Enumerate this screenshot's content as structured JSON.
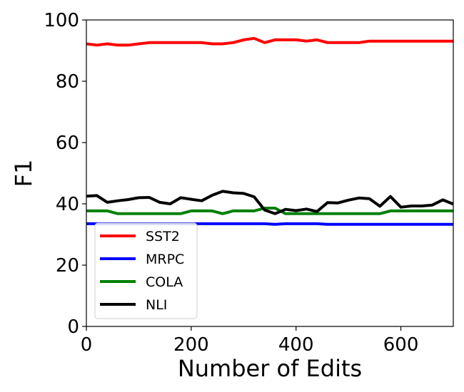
{
  "chart_data": {
    "type": "line",
    "title": "",
    "xlabel": "Number of Edits",
    "ylabel": "F1",
    "xlim": [
      0,
      700
    ],
    "ylim": [
      0,
      100
    ],
    "xticks": [
      0,
      200,
      400,
      600
    ],
    "yticks": [
      0,
      20,
      40,
      60,
      80,
      100
    ],
    "grid": false,
    "legend_position": "lower-left",
    "x": [
      0,
      20,
      40,
      60,
      80,
      100,
      120,
      140,
      160,
      180,
      200,
      220,
      240,
      260,
      280,
      300,
      320,
      340,
      360,
      380,
      400,
      420,
      440,
      460,
      480,
      500,
      520,
      540,
      560,
      580,
      600,
      620,
      640,
      660,
      680,
      700
    ],
    "series": [
      {
        "name": "SST2",
        "color": "#ff0000",
        "values": [
          92.2,
          91.8,
          92.2,
          91.8,
          91.8,
          92.2,
          92.6,
          92.6,
          92.6,
          92.6,
          92.6,
          92.6,
          92.2,
          92.2,
          92.6,
          93.5,
          94.0,
          92.6,
          93.5,
          93.5,
          93.5,
          93.1,
          93.5,
          92.6,
          92.6,
          92.6,
          92.6,
          93.1,
          93.1,
          93.1,
          93.1,
          93.1,
          93.1,
          93.1,
          93.1,
          93.1
        ]
      },
      {
        "name": "MRPC",
        "color": "#0000ff",
        "values": [
          33.5,
          33.5,
          33.5,
          33.5,
          33.5,
          33.5,
          33.5,
          33.5,
          33.5,
          33.5,
          33.5,
          33.5,
          33.5,
          33.5,
          33.5,
          33.5,
          33.5,
          33.5,
          33.3,
          33.5,
          33.5,
          33.5,
          33.5,
          33.3,
          33.3,
          33.3,
          33.3,
          33.3,
          33.3,
          33.3,
          33.3,
          33.3,
          33.3,
          33.3,
          33.3,
          33.3
        ]
      },
      {
        "name": "COLA",
        "color": "#008000",
        "values": [
          37.7,
          37.7,
          37.7,
          36.8,
          36.8,
          36.8,
          36.8,
          36.8,
          36.8,
          36.8,
          37.7,
          37.7,
          37.7,
          36.8,
          37.7,
          37.7,
          37.7,
          38.6,
          38.6,
          36.8,
          36.8,
          36.8,
          36.8,
          36.8,
          36.8,
          36.8,
          36.8,
          36.8,
          36.8,
          37.7,
          37.7,
          37.7,
          37.7,
          37.7,
          37.7,
          37.7
        ]
      },
      {
        "name": "NLI",
        "color": "#000000",
        "values": [
          42.5,
          42.7,
          40.5,
          41.0,
          41.4,
          42.0,
          42.1,
          40.5,
          40.0,
          42.0,
          41.5,
          41.0,
          42.8,
          44.1,
          43.6,
          43.4,
          42.3,
          38.0,
          36.8,
          38.2,
          37.8,
          38.3,
          37.5,
          40.4,
          40.3,
          41.2,
          41.9,
          41.7,
          39.2,
          42.4,
          38.9,
          39.3,
          39.3,
          39.6,
          41.3,
          39.9
        ]
      }
    ]
  }
}
